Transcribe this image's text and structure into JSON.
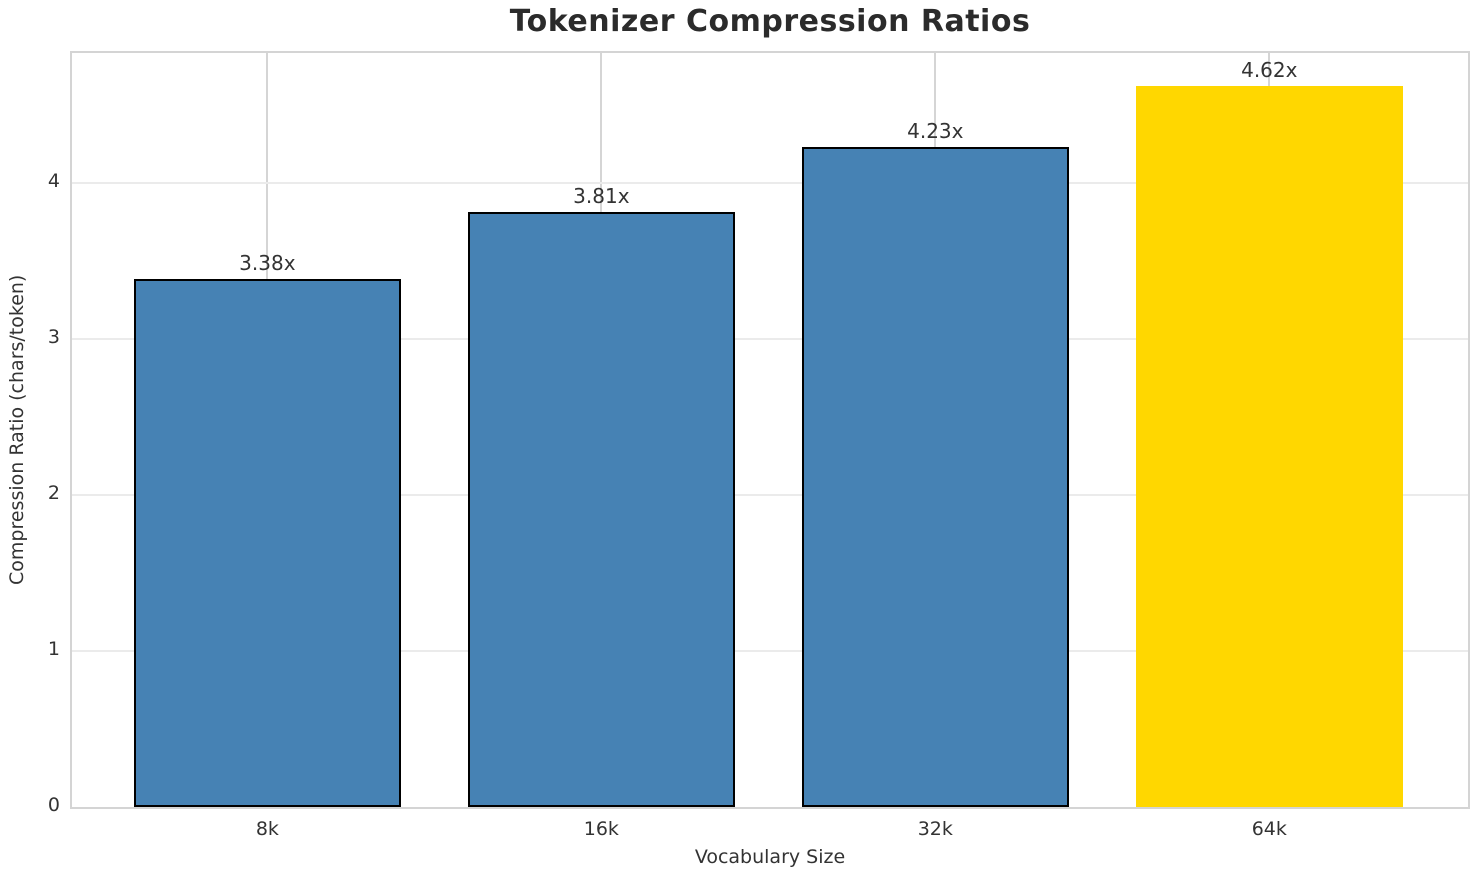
{
  "chart_data": {
    "type": "bar",
    "title": "Tokenizer Compression Ratios",
    "xlabel": "Vocabulary Size",
    "ylabel": "Compression Ratio (chars/token)",
    "categories": [
      "8k",
      "16k",
      "32k",
      "64k"
    ],
    "values": [
      3.38,
      3.81,
      4.23,
      4.62
    ],
    "bar_labels": [
      "3.38x",
      "3.81x",
      "4.23x",
      "4.62x"
    ],
    "yticks": [
      0,
      1,
      2,
      3,
      4
    ],
    "ylim": [
      0,
      4.83
    ],
    "xlim": [
      -0.585,
      3.595
    ],
    "bar_width": 0.8,
    "grid": true,
    "legend": "none",
    "highlight_category": "64k",
    "bar_colors": [
      "#4682B4",
      "#4682B4",
      "#4682B4",
      "#FFD700"
    ],
    "bar_edge_colors": [
      "#000000",
      "#000000",
      "#000000",
      "none"
    ],
    "colors": {
      "bar_default": "#4682B4",
      "bar_highlight": "#FFD700",
      "bar_edge": "#000000",
      "title_text": "#2b2b2b",
      "axis_text": "#333333",
      "grid_horizontal": "#ebebeb",
      "grid_vertical": "#d5d5d5",
      "spine": "#d4d4d4",
      "background": "#ffffff"
    }
  }
}
